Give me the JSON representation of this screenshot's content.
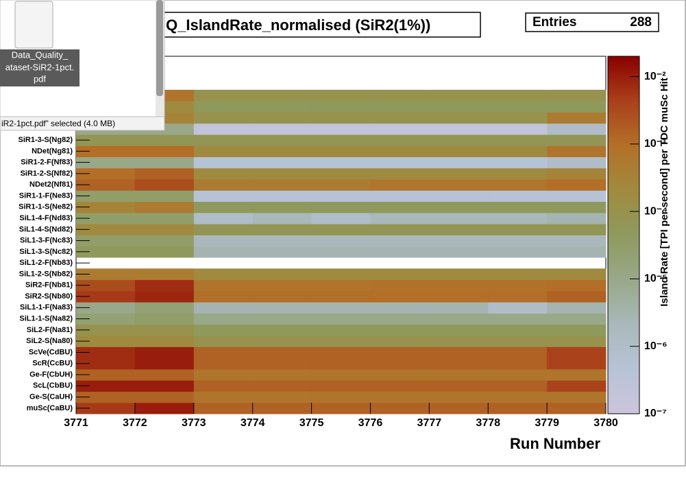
{
  "chart_data": {
    "type": "heatmap",
    "title": "Q_IslandRate_normalised (SiR2(1%))",
    "stats": {
      "label": "Entries",
      "value": 288
    },
    "xlabel": "Run Number",
    "zlabel": "Island Rate [TPI per second] per TDC muSc Hit",
    "xlim": [
      3771,
      3780
    ],
    "xticks": [
      3771,
      3772,
      3773,
      3774,
      3775,
      3776,
      3777,
      3778,
      3779,
      3780
    ],
    "xbins": [
      3771,
      3772,
      3773,
      3774,
      3775,
      3776,
      3777,
      3778,
      3779,
      3780
    ],
    "categories": [
      "muSc(CaBU)",
      "Ge-S(CaUH)",
      "ScL(CbBU)",
      "Ge-F(CbUH)",
      "ScR(CcBU)",
      "ScVe(CdBU)",
      "SiL2-S(Na80)",
      "SiL2-F(Na81)",
      "SiL1-1-S(Na82)",
      "SiL1-1-F(Na83)",
      "SiR2-S(Nb80)",
      "SiR2-F(Nb81)",
      "SiL1-2-S(Nb82)",
      "SiL1-2-F(Nb83)",
      "SiL1-3-S(Nc82)",
      "SiL1-3-F(Nc83)",
      "SiL1-4-S(Nd82)",
      "SiL1-4-F(Nd83)",
      "SiR1-1-S(Ne82)",
      "SiR1-1-F(Ne83)",
      "NDet2(Nf81)",
      "SiR1-2-S(Nf82)",
      "SiR1-2-F(Nf83)",
      "NDet(Ng81)",
      "SiR1-3-S(Ng82)",
      null,
      null,
      null,
      null,
      null,
      null,
      null
    ],
    "z": [
      [
        0.005,
        0.01,
        0.0015,
        0.0015,
        0.0015,
        0.0015,
        0.0015,
        0.0015,
        0.0015
      ],
      [
        0.0015,
        0.0015,
        0.0007,
        0.0007,
        0.0007,
        0.0007,
        0.0007,
        0.0007,
        0.0007
      ],
      [
        0.01,
        0.01,
        0.0015,
        0.0015,
        0.0015,
        0.0015,
        0.0015,
        0.0015,
        0.004
      ],
      [
        0.0015,
        0.0015,
        0.0007,
        0.0007,
        0.0007,
        0.0007,
        0.0007,
        0.0007,
        0.0007
      ],
      [
        0.007,
        0.01,
        0.0015,
        0.0015,
        0.0015,
        0.0015,
        0.0015,
        0.0015,
        0.004
      ],
      [
        0.007,
        0.01,
        0.0015,
        0.0015,
        0.0015,
        0.0015,
        0.0015,
        0.0015,
        0.004
      ],
      [
        0.0002,
        0.0002,
        0.0001,
        0.0001,
        0.0001,
        0.0001,
        0.0001,
        0.0001,
        0.0001
      ],
      [
        0.0001,
        0.0001,
        5e-05,
        5e-05,
        5e-05,
        5e-05,
        5e-05,
        5e-05,
        5e-05
      ],
      [
        2e-05,
        3e-05,
        1e-05,
        1e-05,
        1e-05,
        1e-05,
        1e-05,
        1e-05,
        1e-05
      ],
      [
        1e-05,
        2e-05,
        3e-06,
        3e-06,
        3e-06,
        3e-06,
        3e-06,
        1e-06,
        3e-06
      ],
      [
        0.005,
        0.008,
        0.001,
        0.001,
        0.001,
        0.001,
        0.001,
        0.001,
        0.0015
      ],
      [
        0.003,
        0.007,
        0.0007,
        0.0007,
        0.0007,
        0.0009,
        0.0009,
        0.0009,
        0.001
      ],
      [
        0.0005,
        0.0005,
        0.0002,
        0.0002,
        0.0002,
        0.0002,
        0.0002,
        0.0002,
        0.0002
      ],
      [
        null,
        null,
        null,
        null,
        null,
        null,
        null,
        null,
        null
      ],
      [
        5e-05,
        5e-05,
        3e-06,
        3e-06,
        3e-06,
        3e-06,
        3e-06,
        3e-06,
        3e-06
      ],
      [
        3e-05,
        3e-05,
        2e-06,
        2e-06,
        2e-06,
        2e-06,
        2e-06,
        2e-06,
        2e-06
      ],
      [
        0.0002,
        0.0002,
        7e-05,
        7e-05,
        7e-05,
        7e-05,
        7e-05,
        7e-05,
        7e-05
      ],
      [
        3e-05,
        3e-05,
        1e-06,
        2e-06,
        1e-06,
        2e-06,
        2e-06,
        2e-06,
        3e-06
      ],
      [
        0.0003,
        0.0005,
        5e-05,
        5e-05,
        5e-05,
        5e-05,
        5e-05,
        5e-05,
        5e-05
      ],
      [
        3e-05,
        3e-05,
        5e-07,
        5e-07,
        5e-07,
        5e-07,
        5e-07,
        5e-07,
        5e-07
      ],
      [
        0.0015,
        0.003,
        0.0005,
        0.0005,
        0.0005,
        0.0007,
        0.0007,
        0.0007,
        0.001
      ],
      [
        0.001,
        0.0015,
        0.0002,
        0.0002,
        0.0002,
        0.0002,
        0.0002,
        0.0002,
        0.0003
      ],
      [
        1e-05,
        1e-05,
        5e-07,
        5e-07,
        5e-07,
        5e-07,
        5e-07,
        5e-07,
        1e-06
      ],
      [
        0.001,
        0.001,
        0.0002,
        0.0002,
        0.0002,
        0.0002,
        0.0002,
        0.0002,
        0.0007
      ],
      [
        7e-05,
        7e-05,
        7e-05,
        7e-05,
        7e-05,
        7e-05,
        7e-05,
        7e-05,
        7e-05
      ],
      [
        1e-05,
        1e-05,
        2e-07,
        2e-07,
        2e-07,
        2e-07,
        2e-07,
        2e-07,
        1e-06
      ],
      [
        0.0003,
        0.0003,
        0.0001,
        0.0001,
        0.0001,
        0.0001,
        0.0001,
        0.0001,
        0.0005
      ],
      [
        0.0002,
        0.0002,
        5e-05,
        5e-05,
        5e-05,
        5e-05,
        5e-05,
        5e-05,
        5e-05
      ],
      [
        0.0007,
        0.0007,
        0.0001,
        0.0001,
        0.0001,
        0.0001,
        0.0001,
        0.0001,
        0.0001
      ],
      [
        null,
        null,
        null,
        null,
        null,
        null,
        null,
        null,
        null
      ],
      [
        null,
        null,
        null,
        null,
        null,
        null,
        null,
        null,
        null
      ],
      [
        null,
        null,
        null,
        null,
        null,
        null,
        null,
        null,
        null
      ]
    ],
    "zscale": "log",
    "zlim": [
      1e-07,
      0.02
    ],
    "zticks": [
      {
        "value": 1e-07,
        "label": "10⁻⁷"
      },
      {
        "value": 1e-06,
        "label": "10⁻⁶"
      },
      {
        "value": 1e-05,
        "label": "10⁻⁵"
      },
      {
        "value": 0.0001,
        "label": "10⁻⁴"
      },
      {
        "value": 0.001,
        "label": "10⁻³"
      },
      {
        "value": 0.01,
        "label": "10⁻²"
      }
    ],
    "palette": [
      "#cdc4dc",
      "#b7c3d6",
      "#a9b8bb",
      "#99a88a",
      "#8e9a5e",
      "#a08a3e",
      "#b37028",
      "#a9401a",
      "#8b0000"
    ]
  },
  "file_manager": {
    "icon_label": [
      "Data_Quality_",
      "ataset-SiR2-1pct.",
      "pdf"
    ],
    "status": "iR2-1pct.pdf” selected  (4.0 MB)"
  }
}
